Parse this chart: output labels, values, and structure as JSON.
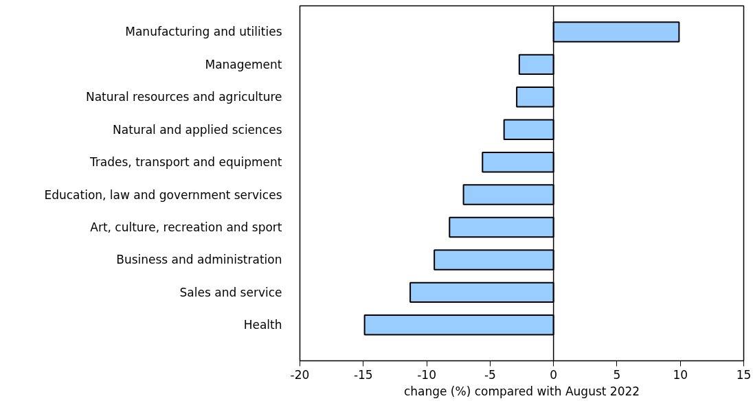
{
  "chart_data": {
    "type": "bar",
    "orientation": "horizontal",
    "xlabel": "change (%) compared with August 2022",
    "categories": [
      "Manufacturing and utilities",
      "Management",
      "Natural resources and agriculture",
      "Natural and applied sciences",
      "Trades, transport and equipment",
      "Education, law and government services",
      "Art, culture, recreation and sport",
      "Business and administration",
      "Sales and service",
      "Health"
    ],
    "values": [
      9.9,
      -2.7,
      -2.9,
      -3.9,
      -5.6,
      -7.1,
      -8.2,
      -9.4,
      -11.3,
      -14.9
    ],
    "color": "#99ccff",
    "xlim": [
      -20,
      15
    ],
    "xticks": [
      -20,
      -15,
      -10,
      -5,
      0,
      5,
      10,
      15
    ]
  }
}
